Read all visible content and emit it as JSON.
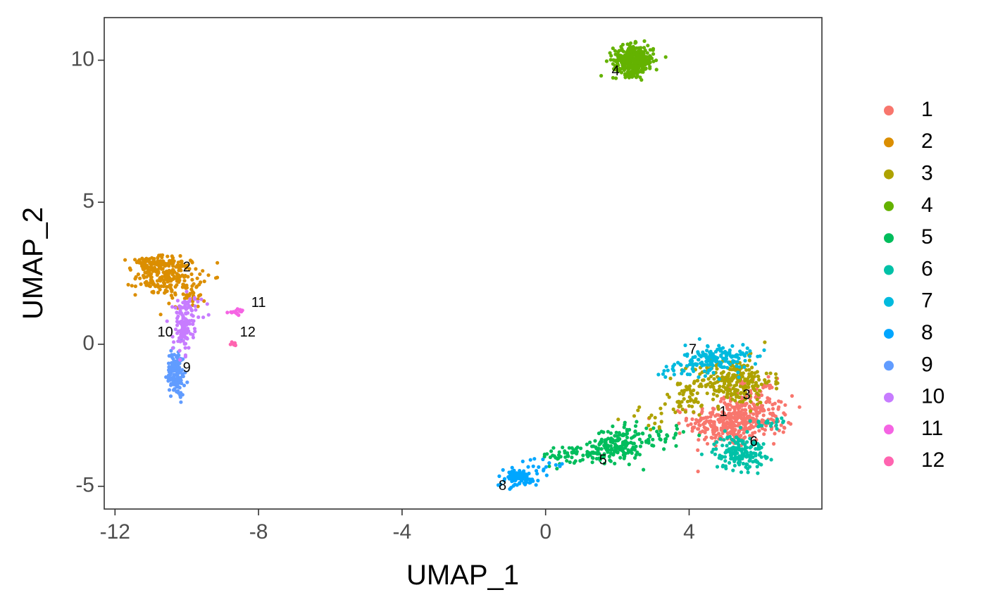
{
  "chart_data": {
    "type": "scatter",
    "title": "",
    "xlabel": "UMAP_1",
    "ylabel": "UMAP_2",
    "xlim": [
      -12.3,
      7.7
    ],
    "ylim": [
      -5.8,
      11.5
    ],
    "xticks": [
      -12,
      -8,
      -4,
      0,
      4
    ],
    "xtick_labels": [
      "-12",
      "-8",
      "-4",
      "0",
      "4"
    ],
    "yticks": [
      -5,
      0,
      5,
      10
    ],
    "ytick_labels": [
      "-5",
      "0",
      "5",
      "10"
    ],
    "grid": false,
    "legend_position": "right",
    "clusters": [
      {
        "name": "1",
        "color": "#F8766D",
        "label_x": 4.95,
        "label_y": -2.4,
        "blobs": [
          {
            "cx": 5.1,
            "cy": -2.8,
            "sx": 0.55,
            "sy": 0.4,
            "n": 300
          },
          {
            "cx": 5.9,
            "cy": -2.5,
            "sx": 0.5,
            "sy": 0.35,
            "n": 100
          },
          {
            "cx": 5.7,
            "cy": -1.8,
            "sx": 0.35,
            "sy": 0.3,
            "n": 50
          }
        ]
      },
      {
        "name": "2",
        "color": "#DB8E00",
        "label_x": -10.0,
        "label_y": 2.7,
        "blobs": [
          {
            "cx": -10.5,
            "cy": 2.4,
            "sx": 0.45,
            "sy": 0.35,
            "n": 220
          },
          {
            "cx": -11.0,
            "cy": 2.8,
            "sx": 0.3,
            "sy": 0.15,
            "n": 60
          },
          {
            "cx": -9.9,
            "cy": 1.7,
            "sx": 0.2,
            "sy": 0.2,
            "n": 30
          }
        ]
      },
      {
        "name": "3",
        "color": "#AEA200",
        "label_x": 5.6,
        "label_y": -1.8,
        "blobs": [
          {
            "cx": 5.2,
            "cy": -1.3,
            "sx": 0.55,
            "sy": 0.4,
            "n": 260
          },
          {
            "cx": 3.9,
            "cy": -2.0,
            "sx": 0.35,
            "sy": 0.3,
            "n": 40
          },
          {
            "cx": 3.0,
            "cy": -2.6,
            "sx": 0.4,
            "sy": 0.25,
            "n": 15
          }
        ]
      },
      {
        "name": "4",
        "color": "#64B200",
        "label_x": 1.95,
        "label_y": 9.6,
        "blobs": [
          {
            "cx": 2.45,
            "cy": 10.0,
            "sx": 0.28,
            "sy": 0.26,
            "n": 330
          }
        ]
      },
      {
        "name": "5",
        "color": "#00BD5C",
        "label_x": 1.6,
        "label_y": -4.1,
        "blobs": [
          {
            "cx": 2.0,
            "cy": -3.55,
            "sx": 0.35,
            "sy": 0.3,
            "n": 160
          },
          {
            "cx": 0.9,
            "cy": -3.9,
            "sx": 0.5,
            "sy": 0.18,
            "n": 70
          },
          {
            "cx": 3.0,
            "cy": -3.2,
            "sx": 0.5,
            "sy": 0.2,
            "n": 40
          }
        ]
      },
      {
        "name": "6",
        "color": "#00C1A7",
        "label_x": 5.8,
        "label_y": -3.45,
        "blobs": [
          {
            "cx": 5.4,
            "cy": -3.8,
            "sx": 0.35,
            "sy": 0.3,
            "n": 170
          },
          {
            "cx": 6.3,
            "cy": -2.8,
            "sx": 0.3,
            "sy": 0.15,
            "n": 20
          }
        ]
      },
      {
        "name": "7",
        "color": "#00BADE",
        "label_x": 4.1,
        "label_y": -0.2,
        "blobs": [
          {
            "cx": 4.8,
            "cy": -0.5,
            "sx": 0.45,
            "sy": 0.25,
            "n": 150
          },
          {
            "cx": 3.7,
            "cy": -0.9,
            "sx": 0.3,
            "sy": 0.15,
            "n": 20
          }
        ]
      },
      {
        "name": "8",
        "color": "#00A6FF",
        "label_x": -1.2,
        "label_y": -5.0,
        "blobs": [
          {
            "cx": -0.8,
            "cy": -4.7,
            "sx": 0.3,
            "sy": 0.15,
            "n": 90
          },
          {
            "cx": 0.0,
            "cy": -4.3,
            "sx": 0.35,
            "sy": 0.15,
            "n": 20
          }
        ]
      },
      {
        "name": "9",
        "color": "#619CFF",
        "label_x": -10.0,
        "label_y": -0.85,
        "blobs": [
          {
            "cx": -10.3,
            "cy": -1.0,
            "sx": 0.12,
            "sy": 0.4,
            "n": 150
          }
        ]
      },
      {
        "name": "10",
        "color": "#C77CFF",
        "label_x": -10.6,
        "label_y": 0.4,
        "blobs": [
          {
            "cx": -10.1,
            "cy": 0.6,
            "sx": 0.14,
            "sy": 0.45,
            "n": 110
          },
          {
            "cx": -9.9,
            "cy": 1.3,
            "sx": 0.2,
            "sy": 0.2,
            "n": 30
          }
        ]
      },
      {
        "name": "11",
        "color": "#F564E3",
        "label_x": -8.0,
        "label_y": 1.45,
        "blobs": [
          {
            "cx": -8.6,
            "cy": 1.15,
            "sx": 0.12,
            "sy": 0.05,
            "n": 18
          }
        ]
      },
      {
        "name": "12",
        "color": "#FF64B0",
        "label_x": -8.3,
        "label_y": 0.4,
        "blobs": [
          {
            "cx": -8.65,
            "cy": -0.02,
            "sx": 0.06,
            "sy": 0.04,
            "n": 9
          }
        ]
      }
    ]
  }
}
